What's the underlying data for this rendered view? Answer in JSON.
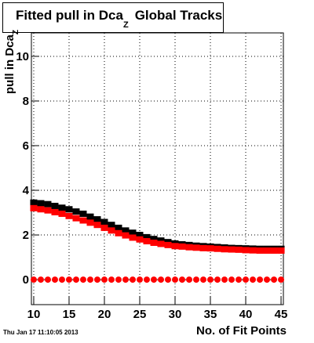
{
  "chart_data": {
    "type": "scatter",
    "title": "Fitted pull in Dca",
    "title_subscript": "Z",
    "title_suffix": "Global Tracks",
    "y_label": "pull in Dca",
    "y_label_subscript": "Z",
    "x_label": "No. of Fit Points",
    "footer": "Thu Jan 17 11:10:05 2013",
    "x": [
      10,
      11,
      12,
      13,
      14,
      15,
      16,
      17,
      18,
      19,
      20,
      21,
      22,
      23,
      24,
      25,
      26,
      27,
      28,
      29,
      30,
      31,
      32,
      33,
      34,
      35,
      36,
      37,
      38,
      39,
      40,
      41,
      42,
      43,
      44,
      45
    ],
    "series": [
      {
        "color": "#000000",
        "marker": "square",
        "values": [
          3.45,
          3.42,
          3.38,
          3.3,
          3.22,
          3.15,
          3.05,
          2.95,
          2.82,
          2.7,
          2.58,
          2.45,
          2.32,
          2.2,
          2.1,
          2.0,
          1.9,
          1.82,
          1.75,
          1.68,
          1.62,
          1.58,
          1.55,
          1.52,
          1.5,
          1.48,
          1.46,
          1.44,
          1.42,
          1.41,
          1.4,
          1.39,
          1.38,
          1.38,
          1.38,
          1.38
        ]
      },
      {
        "color": "#ff0000",
        "marker": "square",
        "values": [
          3.2,
          3.15,
          3.1,
          3.02,
          2.95,
          2.85,
          2.75,
          2.65,
          2.55,
          2.45,
          2.32,
          2.2,
          2.08,
          1.98,
          1.88,
          1.8,
          1.72,
          1.65,
          1.6,
          1.55,
          1.5,
          1.48,
          1.45,
          1.43,
          1.41,
          1.4,
          1.38,
          1.36,
          1.35,
          1.34,
          1.32,
          1.31,
          1.3,
          1.3,
          1.3,
          1.3
        ]
      },
      {
        "color": "#ff0000",
        "marker": "circle",
        "values": [
          0,
          0,
          0,
          0,
          0,
          0,
          0,
          0,
          0,
          0,
          0,
          0,
          0,
          0,
          0,
          0,
          0,
          0,
          0,
          0,
          0,
          0,
          0,
          0,
          0,
          0,
          0,
          0,
          0,
          0,
          0,
          0,
          0,
          0,
          0,
          0
        ]
      }
    ],
    "xlim": [
      9.67,
      45.33
    ],
    "xticks": [
      10,
      15,
      20,
      25,
      30,
      35,
      40,
      45
    ],
    "ylim": [
      -1.12,
      11.05
    ],
    "yticks": [
      0,
      2,
      4,
      6,
      8,
      10
    ],
    "grid": true
  }
}
